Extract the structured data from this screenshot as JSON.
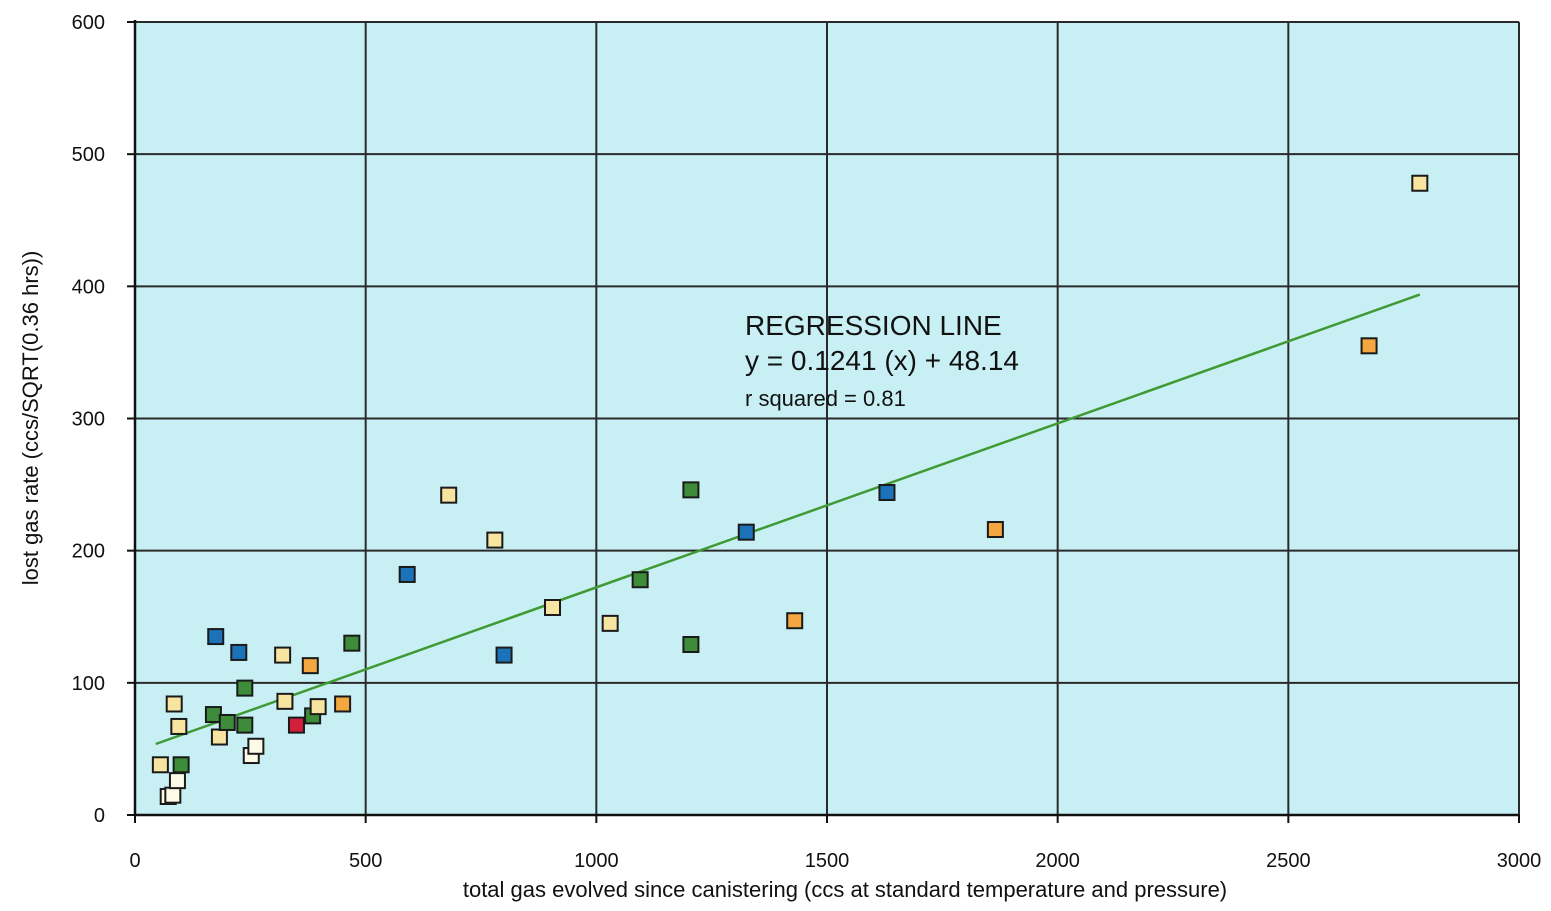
{
  "chart_data": {
    "type": "scatter",
    "title": "",
    "xlabel": "total gas evolved since canistering (ccs at standard temperature and pressure)",
    "ylabel": "lost gas rate (ccs/SQRT(0.36 hrs))",
    "xlim": [
      0,
      3000
    ],
    "ylim": [
      0,
      600
    ],
    "x_ticks": [
      "0",
      "500",
      "1000",
      "1500",
      "2000",
      "2500",
      "3000"
    ],
    "y_ticks": [
      "0",
      "100",
      "200",
      "300",
      "400",
      "500",
      "600"
    ],
    "grid": true,
    "legend": "none",
    "plot_background": "#c8f0f4",
    "colors": {
      "white": "#fdfbe8",
      "yellow": "#f6e4a0",
      "orange": "#f4a640",
      "green": "#3d8c3a",
      "blue": "#1c72b8",
      "red": "#d21f3c",
      "regression": "#3f9a34"
    },
    "points": [
      {
        "x": 55,
        "y": 38,
        "color": "yellow"
      },
      {
        "x": 72,
        "y": 14,
        "color": "white"
      },
      {
        "x": 82,
        "y": 15,
        "color": "white"
      },
      {
        "x": 92,
        "y": 26,
        "color": "white"
      },
      {
        "x": 85,
        "y": 84,
        "color": "yellow"
      },
      {
        "x": 95,
        "y": 67,
        "color": "yellow"
      },
      {
        "x": 100,
        "y": 38,
        "color": "green"
      },
      {
        "x": 170,
        "y": 76,
        "color": "green"
      },
      {
        "x": 175,
        "y": 135,
        "color": "blue"
      },
      {
        "x": 183,
        "y": 59,
        "color": "yellow"
      },
      {
        "x": 200,
        "y": 70,
        "color": "green"
      },
      {
        "x": 225,
        "y": 123,
        "color": "blue"
      },
      {
        "x": 238,
        "y": 96,
        "color": "green"
      },
      {
        "x": 238,
        "y": 68,
        "color": "green"
      },
      {
        "x": 252,
        "y": 45,
        "color": "white"
      },
      {
        "x": 262,
        "y": 52,
        "color": "white"
      },
      {
        "x": 320,
        "y": 121,
        "color": "yellow"
      },
      {
        "x": 325,
        "y": 86,
        "color": "yellow"
      },
      {
        "x": 350,
        "y": 68,
        "color": "red"
      },
      {
        "x": 380,
        "y": 113,
        "color": "orange"
      },
      {
        "x": 385,
        "y": 75,
        "color": "green"
      },
      {
        "x": 397,
        "y": 82,
        "color": "yellow"
      },
      {
        "x": 450,
        "y": 84,
        "color": "orange"
      },
      {
        "x": 470,
        "y": 130,
        "color": "green"
      },
      {
        "x": 590,
        "y": 182,
        "color": "blue"
      },
      {
        "x": 680,
        "y": 242,
        "color": "yellow"
      },
      {
        "x": 780,
        "y": 208,
        "color": "yellow"
      },
      {
        "x": 800,
        "y": 121,
        "color": "blue"
      },
      {
        "x": 905,
        "y": 157,
        "color": "yellow"
      },
      {
        "x": 1030,
        "y": 145,
        "color": "yellow"
      },
      {
        "x": 1095,
        "y": 178,
        "color": "green"
      },
      {
        "x": 1205,
        "y": 129,
        "color": "green"
      },
      {
        "x": 1205,
        "y": 246,
        "color": "green"
      },
      {
        "x": 1325,
        "y": 214,
        "color": "blue"
      },
      {
        "x": 1430,
        "y": 147,
        "color": "orange"
      },
      {
        "x": 1630,
        "y": 244,
        "color": "blue"
      },
      {
        "x": 1865,
        "y": 216,
        "color": "orange"
      },
      {
        "x": 2675,
        "y": 355,
        "color": "orange"
      },
      {
        "x": 2785,
        "y": 478,
        "color": "yellow"
      }
    ],
    "regression": {
      "slope": 0.1241,
      "intercept": 48.14,
      "x_range": [
        45,
        2785
      ]
    },
    "annotation": {
      "line1": "REGRESSION LINE",
      "line2": "y = 0.1241 (x) + 48.14",
      "line3": "r squared = 0.81"
    }
  }
}
